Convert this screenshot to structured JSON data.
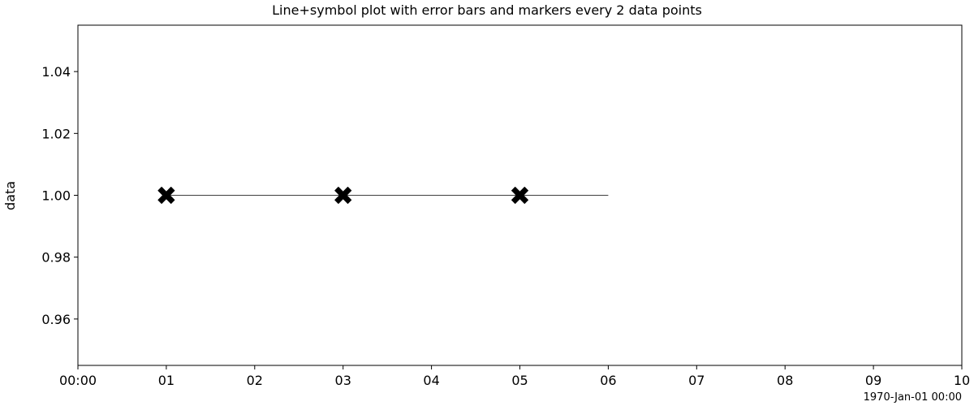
{
  "chart_data": {
    "type": "line",
    "title": "Line+symbol plot with error bars and markers every 2 data points",
    "xlabel": "",
    "ylabel": "data",
    "x_offset_label": "1970-Jan-01 00:00",
    "x_tick_values": [
      0,
      1,
      2,
      3,
      4,
      5,
      6,
      7,
      8,
      9,
      10
    ],
    "x_tick_labels": [
      "00:00",
      "01",
      "02",
      "03",
      "04",
      "05",
      "06",
      "07",
      "08",
      "09",
      "10"
    ],
    "y_tick_values": [
      0.96,
      0.98,
      1.0,
      1.02,
      1.04
    ],
    "y_tick_labels": [
      "0.96",
      "0.98",
      "1.00",
      "1.02",
      "1.04"
    ],
    "xlim": [
      0,
      10
    ],
    "ylim": [
      0.945,
      1.055
    ],
    "grid": false,
    "series": [
      {
        "x": [
          1,
          2,
          3,
          4,
          5,
          6
        ],
        "y": [
          1.0,
          1.0,
          1.0,
          1.0,
          1.0,
          1.0
        ],
        "marker": "X",
        "marker_every": 2,
        "line_color": "#000000",
        "marker_color": "#000000"
      }
    ]
  }
}
